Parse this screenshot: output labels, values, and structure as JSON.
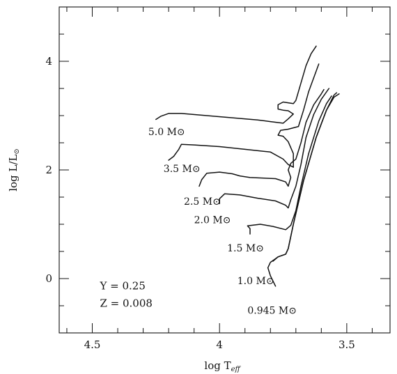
{
  "chart_data": {
    "type": "line",
    "title": "",
    "xlabel": "log T",
    "xlabel_sub": "eff",
    "ylabel": "log L/L",
    "ylabel_sub": "⊙",
    "xlim": [
      4.63,
      3.33
    ],
    "ylim": [
      -1.0,
      5.0
    ],
    "x_reversed": true,
    "grid": false,
    "x_ticks": [
      {
        "value": 4.5,
        "label": "4.5"
      },
      {
        "value": 4.0,
        "label": "4"
      },
      {
        "value": 3.5,
        "label": "3.5"
      }
    ],
    "y_ticks": [
      {
        "value": 0,
        "label": "0"
      },
      {
        "value": 2,
        "label": "2"
      },
      {
        "value": 4,
        "label": "4"
      }
    ],
    "annotations": [
      {
        "key": "y",
        "text": "Y = 0.25",
        "x": 4.47,
        "y": -0.2
      },
      {
        "key": "z",
        "text": "Z = 0.008",
        "x": 4.47,
        "y": -0.52
      }
    ],
    "series": [
      {
        "name": "5.0 M⊙",
        "label_pos": {
          "x": 4.28,
          "y": 2.64
        },
        "points": [
          [
            4.25,
            2.93
          ],
          [
            4.23,
            2.99
          ],
          [
            4.2,
            3.04
          ],
          [
            4.15,
            3.04
          ],
          [
            4.05,
            3.0
          ],
          [
            3.95,
            2.96
          ],
          [
            3.85,
            2.92
          ],
          [
            3.8,
            2.89
          ],
          [
            3.75,
            2.86
          ],
          [
            3.73,
            2.94
          ],
          [
            3.71,
            3.03
          ],
          [
            3.73,
            3.09
          ],
          [
            3.75,
            3.1
          ],
          [
            3.77,
            3.12
          ],
          [
            3.77,
            3.2
          ],
          [
            3.75,
            3.25
          ],
          [
            3.71,
            3.22
          ],
          [
            3.7,
            3.28
          ],
          [
            3.68,
            3.6
          ],
          [
            3.66,
            3.92
          ],
          [
            3.64,
            4.14
          ],
          [
            3.62,
            4.28
          ]
        ]
      },
      {
        "name": "3.5 M⊙",
        "label_pos": {
          "x": 4.22,
          "y": 1.96
        },
        "points": [
          [
            4.2,
            2.18
          ],
          [
            4.18,
            2.25
          ],
          [
            4.16,
            2.38
          ],
          [
            4.15,
            2.47
          ],
          [
            4.1,
            2.46
          ],
          [
            4.0,
            2.43
          ],
          [
            3.9,
            2.38
          ],
          [
            3.8,
            2.33
          ],
          [
            3.75,
            2.2
          ],
          [
            3.73,
            2.1
          ],
          [
            3.71,
            2.05
          ],
          [
            3.71,
            2.3
          ],
          [
            3.73,
            2.52
          ],
          [
            3.75,
            2.62
          ],
          [
            3.77,
            2.64
          ],
          [
            3.76,
            2.73
          ],
          [
            3.73,
            2.75
          ],
          [
            3.69,
            2.8
          ],
          [
            3.67,
            3.1
          ],
          [
            3.65,
            3.44
          ],
          [
            3.62,
            3.82
          ],
          [
            3.61,
            3.95
          ]
        ]
      },
      {
        "name": "2.5 M⊙",
        "label_pos": {
          "x": 4.14,
          "y": 1.36
        },
        "points": [
          [
            4.08,
            1.7
          ],
          [
            4.07,
            1.82
          ],
          [
            4.05,
            1.94
          ],
          [
            4.0,
            1.96
          ],
          [
            3.95,
            1.93
          ],
          [
            3.92,
            1.89
          ],
          [
            3.88,
            1.86
          ],
          [
            3.78,
            1.84
          ],
          [
            3.74,
            1.78
          ],
          [
            3.73,
            1.7
          ],
          [
            3.72,
            1.86
          ],
          [
            3.73,
            2.0
          ],
          [
            3.72,
            2.12
          ],
          [
            3.7,
            2.2
          ],
          [
            3.68,
            2.5
          ],
          [
            3.66,
            2.88
          ],
          [
            3.63,
            3.2
          ],
          [
            3.6,
            3.4
          ],
          [
            3.59,
            3.48
          ]
        ]
      },
      {
        "name": "2.0 M⊙",
        "label_pos": {
          "x": 4.1,
          "y": 1.02
        },
        "points": [
          [
            4.0,
            1.38
          ],
          [
            4.0,
            1.47
          ],
          [
            3.98,
            1.56
          ],
          [
            3.92,
            1.54
          ],
          [
            3.85,
            1.48
          ],
          [
            3.78,
            1.43
          ],
          [
            3.74,
            1.35
          ],
          [
            3.73,
            1.3
          ],
          [
            3.72,
            1.45
          ],
          [
            3.7,
            1.7
          ],
          [
            3.68,
            2.1
          ],
          [
            3.66,
            2.6
          ],
          [
            3.63,
            3.02
          ],
          [
            3.6,
            3.3
          ],
          [
            3.57,
            3.5
          ]
        ]
      },
      {
        "name": "1.5 M⊙",
        "label_pos": {
          "x": 3.97,
          "y": 0.5
        },
        "points": [
          [
            3.88,
            0.82
          ],
          [
            3.88,
            0.92
          ],
          [
            3.89,
            0.97
          ],
          [
            3.84,
            1.0
          ],
          [
            3.79,
            0.96
          ],
          [
            3.74,
            0.9
          ],
          [
            3.72,
            0.98
          ],
          [
            3.7,
            1.25
          ],
          [
            3.68,
            1.7
          ],
          [
            3.65,
            2.3
          ],
          [
            3.61,
            2.9
          ],
          [
            3.58,
            3.22
          ],
          [
            3.56,
            3.36
          ]
        ]
      },
      {
        "name": "1.0 M⊙",
        "label_pos": {
          "x": 3.93,
          "y": -0.1
        },
        "points": [
          [
            3.79,
            0.32
          ],
          [
            3.77,
            0.4
          ],
          [
            3.74,
            0.45
          ],
          [
            3.73,
            0.55
          ],
          [
            3.71,
            1.0
          ],
          [
            3.67,
            1.8
          ],
          [
            3.62,
            2.6
          ],
          [
            3.58,
            3.1
          ],
          [
            3.55,
            3.38
          ],
          [
            3.54,
            3.42
          ]
        ]
      },
      {
        "name": "0.945 M⊙",
        "label_pos": {
          "x": 3.89,
          "y": -0.65
        },
        "points": [
          [
            3.78,
            -0.14
          ],
          [
            3.8,
            0.05
          ],
          [
            3.81,
            0.2
          ],
          [
            3.8,
            0.3
          ],
          [
            3.77,
            0.4
          ],
          [
            3.74,
            0.45
          ],
          [
            3.73,
            0.55
          ],
          [
            3.71,
            1.0
          ],
          [
            3.67,
            1.8
          ],
          [
            3.62,
            2.6
          ],
          [
            3.58,
            3.1
          ],
          [
            3.55,
            3.34
          ],
          [
            3.53,
            3.4
          ]
        ]
      }
    ]
  }
}
